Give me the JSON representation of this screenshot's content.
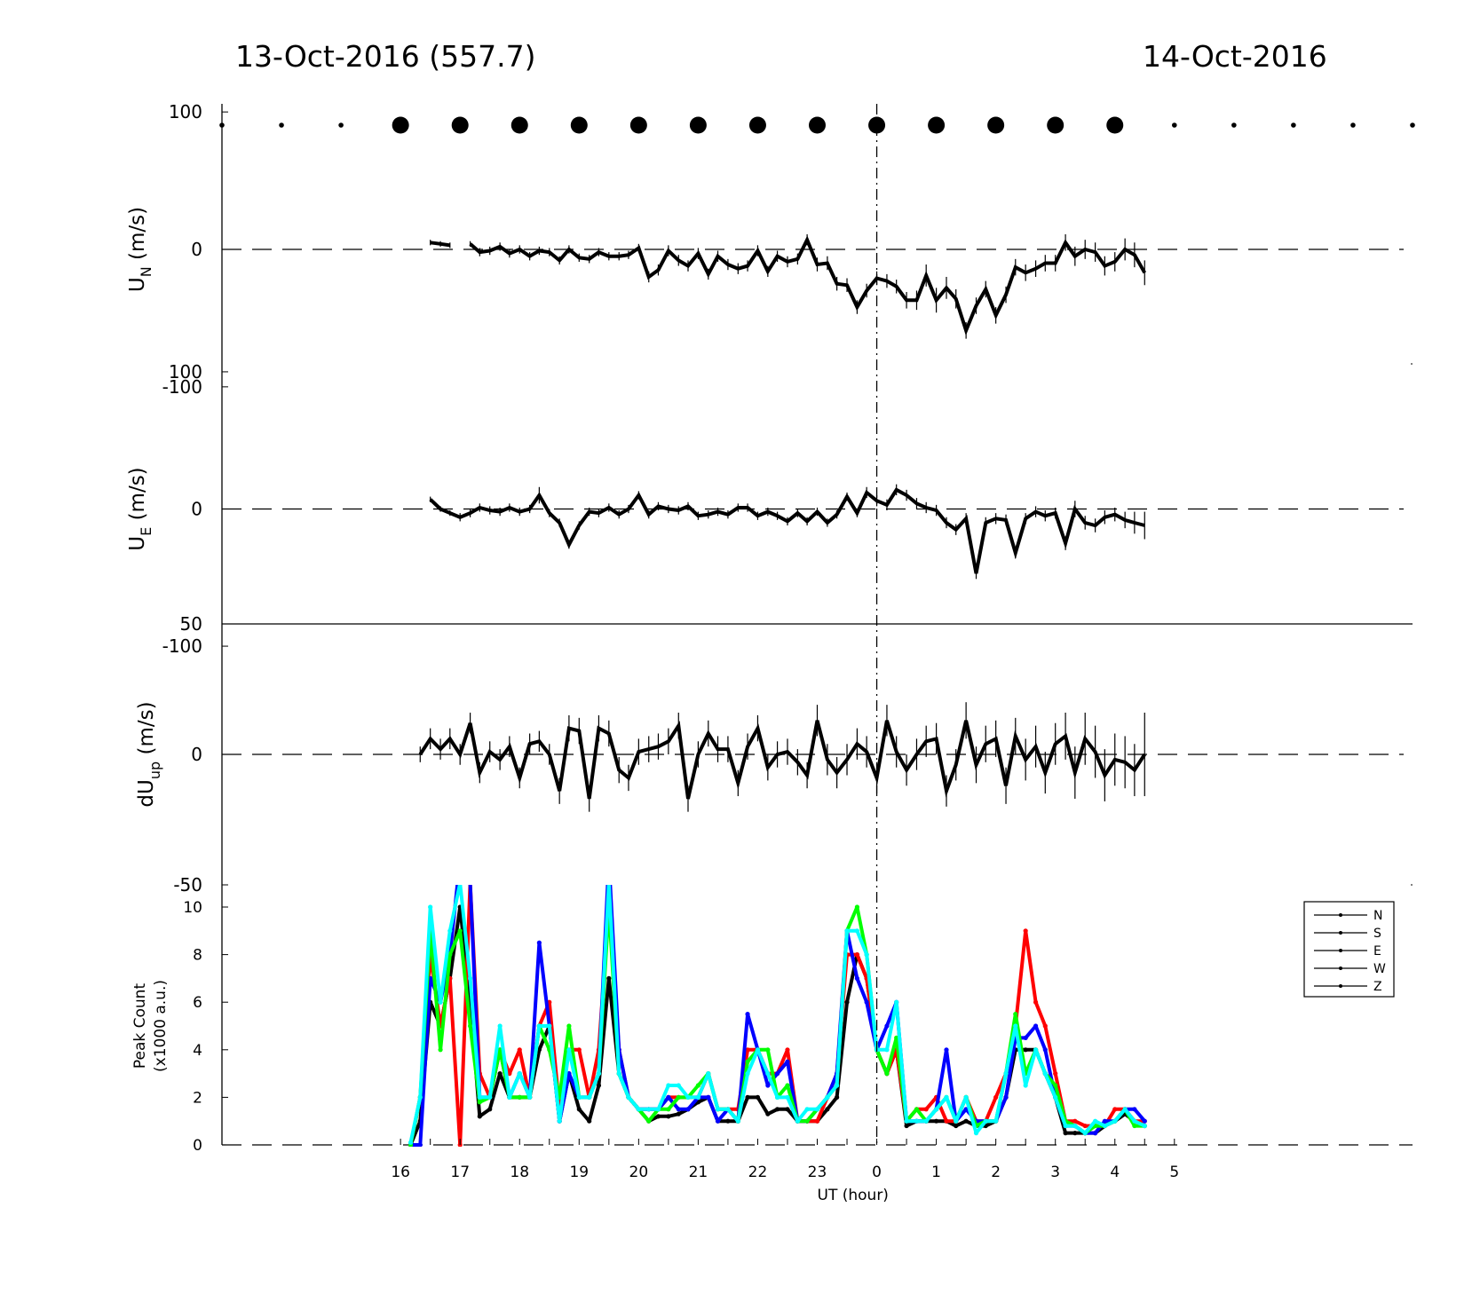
{
  "header": {
    "date_left": "13-Oct-2016 (557.7)",
    "date_right": "14-Oct-2016"
  },
  "x_axis": {
    "label": "UT (hour)",
    "tick_hours": [
      16,
      17,
      18,
      19,
      20,
      21,
      22,
      23,
      24,
      25,
      26,
      27,
      28,
      29
    ],
    "tick_labels": [
      "16",
      "17",
      "18",
      "19",
      "20",
      "21",
      "22",
      "23",
      "0",
      "1",
      "2",
      "3",
      "4",
      "5"
    ]
  },
  "legend": {
    "entries": [
      "N",
      "S",
      "E",
      "W",
      "Z"
    ]
  },
  "colors": {
    "N": "#ff0000",
    "S": "#0000ff",
    "E": "#00ff00",
    "W": "#00ffff",
    "Z": "#000000",
    "axis": "#000000"
  },
  "chart_data": [
    {
      "type": "scatter",
      "panel": "cloud-cover",
      "hours": [
        13.0,
        14.0,
        15.0,
        16.0,
        17.0,
        18.0,
        19.0,
        20.0,
        21.0,
        22.0,
        23.0,
        24.0,
        25.0,
        26.0,
        27.0,
        28.0,
        29.0,
        30.0,
        31.0,
        32.0,
        33.0
      ],
      "marker_size": [
        "small",
        "small",
        "small",
        "large",
        "large",
        "large",
        "large",
        "large",
        "large",
        "large",
        "large",
        "large",
        "large",
        "large",
        "large",
        "large",
        "small",
        "small",
        "small",
        "small",
        "small"
      ]
    },
    {
      "type": "line",
      "panel": "UN",
      "ylabel": "U",
      "ylabel_sub": "N",
      "ylabel_unit": "(m/s)",
      "ylim": [
        -175,
        175
      ],
      "yticks": [
        -100,
        0,
        100
      ],
      "ytick_labels": [
        "-100",
        "0",
        "100"
      ],
      "x": [
        16.5,
        16.67,
        16.83,
        17.17,
        17.33,
        17.5,
        17.67,
        17.83,
        18.0,
        18.17,
        18.33,
        18.5,
        18.67,
        18.83,
        19.0,
        19.17,
        19.33,
        19.5,
        19.67,
        19.83,
        20.0,
        20.17,
        20.33,
        20.5,
        20.67,
        20.83,
        21.0,
        21.17,
        21.33,
        21.5,
        21.67,
        21.83,
        22.0,
        22.17,
        22.33,
        22.5,
        22.67,
        22.83,
        23.0,
        23.17,
        23.33,
        23.5,
        23.67,
        23.83,
        24.0,
        24.17,
        24.33,
        24.5,
        24.67,
        24.83,
        25.0,
        25.17,
        25.33,
        25.5,
        25.67,
        25.83,
        26.0,
        26.17,
        26.33,
        26.5,
        26.67,
        26.83,
        27.0,
        27.17,
        27.33,
        27.5,
        27.67,
        27.83,
        28.0,
        28.17,
        28.33,
        28.5
      ],
      "y": [
        5,
        4,
        3,
        4,
        -2,
        -1,
        2,
        -3,
        0,
        -5,
        -1,
        -2,
        -8,
        0,
        -6,
        -7,
        -2,
        -5,
        -5,
        -4,
        1,
        -20,
        -15,
        -1,
        -8,
        -12,
        -3,
        -18,
        -5,
        -11,
        -14,
        -12,
        -1,
        -16,
        -5,
        -9,
        -7,
        7,
        -11,
        -10,
        -25,
        -26,
        -42,
        -30,
        -21,
        -23,
        -27,
        -37,
        -37,
        -19,
        -37,
        -28,
        -36,
        -59,
        -41,
        -29,
        -48,
        -33,
        -13,
        -17,
        -14,
        -10,
        -10,
        5,
        -5,
        0,
        -2,
        -12,
        -9,
        0,
        -4,
        -17
      ],
      "gaps_after_index": [
        2
      ],
      "err": [
        2,
        2,
        2,
        2,
        3,
        3,
        3,
        3,
        3,
        3,
        3,
        3,
        3,
        3,
        3,
        3,
        3,
        3,
        3,
        3,
        3,
        4,
        4,
        4,
        4,
        4,
        4,
        4,
        4,
        4,
        4,
        4,
        4,
        4,
        4,
        4,
        4,
        4,
        5,
        5,
        5,
        5,
        5,
        5,
        5,
        5,
        5,
        6,
        7,
        8,
        9,
        8,
        7,
        6,
        6,
        6,
        6,
        6,
        6,
        6,
        6,
        6,
        6,
        6,
        7,
        7,
        7,
        7,
        7,
        8,
        9,
        9
      ]
    },
    {
      "type": "line",
      "panel": "UE",
      "ylabel": "U",
      "ylabel_sub": "E",
      "ylabel_unit": "(m/s)",
      "ylim": [
        -175,
        175
      ],
      "yticks": [
        -100,
        0,
        100
      ],
      "ytick_labels": [
        "-100",
        "0",
        "100"
      ],
      "x": [
        16.5,
        16.67,
        16.83,
        17.0,
        17.17,
        17.33,
        17.5,
        17.67,
        17.83,
        18.0,
        18.17,
        18.33,
        18.5,
        18.67,
        18.83,
        19.0,
        19.17,
        19.33,
        19.5,
        19.67,
        19.83,
        20.0,
        20.17,
        20.33,
        20.5,
        20.67,
        20.83,
        21.0,
        21.17,
        21.33,
        21.5,
        21.67,
        21.83,
        22.0,
        22.17,
        22.33,
        22.5,
        22.67,
        22.83,
        23.0,
        23.17,
        23.33,
        23.5,
        23.67,
        23.83,
        24.0,
        24.17,
        24.33,
        24.5,
        24.67,
        24.83,
        25.0,
        25.17,
        25.33,
        25.5,
        25.67,
        25.83,
        26.0,
        26.17,
        26.33,
        26.5,
        26.67,
        26.83,
        27.0,
        27.17,
        27.33,
        27.5,
        27.67,
        27.83,
        28.0,
        28.17,
        28.33,
        28.5
      ],
      "y": [
        7,
        0,
        -3,
        -6,
        -3,
        1,
        -1,
        -2,
        1,
        -2,
        0,
        10,
        -3,
        -10,
        -26,
        -12,
        -2,
        -3,
        1,
        -4,
        0,
        10,
        -4,
        2,
        0,
        -1,
        2,
        -5,
        -4,
        -2,
        -4,
        1,
        1,
        -5,
        -2,
        -5,
        -9,
        -3,
        -9,
        -2,
        -10,
        -4,
        9,
        -3,
        12,
        6,
        3,
        14,
        10,
        4,
        1,
        -1,
        -10,
        -15,
        -7,
        -47,
        -10,
        -7,
        -8,
        -32,
        -7,
        -2,
        -5,
        -3,
        -25,
        0,
        -10,
        -12,
        -6,
        -4,
        -8,
        -10,
        -12
      ],
      "err": [
        2,
        2,
        2,
        3,
        3,
        3,
        3,
        3,
        3,
        3,
        3,
        6,
        3,
        3,
        3,
        3,
        3,
        3,
        3,
        3,
        3,
        3,
        3,
        3,
        3,
        3,
        3,
        3,
        3,
        3,
        3,
        3,
        3,
        3,
        3,
        3,
        3,
        3,
        3,
        3,
        3,
        3,
        3,
        3,
        4,
        4,
        4,
        4,
        4,
        4,
        4,
        4,
        4,
        4,
        4,
        4,
        4,
        4,
        4,
        4,
        4,
        4,
        4,
        4,
        5,
        6,
        5,
        5,
        5,
        5,
        6,
        8,
        10
      ]
    },
    {
      "type": "line",
      "panel": "dUup",
      "ylabel": "dU",
      "ylabel_sub": "up",
      "ylabel_unit": "(m/s)",
      "ylim": [
        -50,
        50
      ],
      "yticks": [
        -50,
        0,
        50
      ],
      "ytick_labels": [
        "-50",
        "0",
        "50"
      ],
      "x": [
        16.33,
        16.5,
        16.67,
        16.83,
        17.0,
        17.17,
        17.33,
        17.5,
        17.67,
        17.83,
        18.0,
        18.17,
        18.33,
        18.5,
        18.67,
        18.83,
        19.0,
        19.17,
        19.33,
        19.5,
        19.67,
        19.83,
        20.0,
        20.17,
        20.33,
        20.5,
        20.67,
        20.83,
        21.0,
        21.17,
        21.33,
        21.5,
        21.67,
        21.83,
        22.0,
        22.17,
        22.33,
        22.5,
        22.67,
        22.83,
        23.0,
        23.17,
        23.33,
        23.5,
        23.67,
        23.83,
        24.0,
        24.17,
        24.33,
        24.5,
        24.67,
        24.83,
        25.0,
        25.17,
        25.33,
        25.5,
        25.67,
        25.83,
        26.0,
        26.17,
        26.33,
        26.5,
        26.67,
        26.83,
        27.0,
        27.17,
        27.33,
        27.5,
        27.67,
        27.83,
        28.0,
        28.17,
        28.33,
        28.5
      ],
      "y": [
        0,
        6,
        2,
        6,
        0,
        12,
        -7,
        1,
        -2,
        3,
        -9,
        4,
        5,
        0,
        -14,
        10,
        9,
        -17,
        10,
        8,
        -6,
        -9,
        1,
        2,
        3,
        5,
        11,
        -17,
        0,
        8,
        2,
        2,
        -11,
        3,
        10,
        -5,
        0,
        1,
        -3,
        -8,
        13,
        -2,
        -7,
        -2,
        4,
        1,
        -9,
        13,
        1,
        -6,
        0,
        5,
        6,
        -14,
        -4,
        13,
        -4,
        4,
        6,
        -12,
        7,
        -2,
        3,
        -7,
        4,
        7,
        -7,
        6,
        1,
        -8,
        -2,
        -3,
        -6,
        0
      ],
      "err": [
        3,
        4,
        4,
        4,
        4,
        4,
        4,
        4,
        4,
        4,
        4,
        4,
        4,
        4,
        5,
        5,
        5,
        5,
        5,
        5,
        5,
        5,
        5,
        5,
        5,
        5,
        5,
        5,
        5,
        5,
        5,
        5,
        5,
        5,
        5,
        5,
        5,
        5,
        5,
        5,
        6,
        6,
        6,
        6,
        6,
        6,
        6,
        6,
        6,
        6,
        6,
        6,
        6,
        6,
        6,
        7,
        7,
        7,
        7,
        7,
        7,
        8,
        8,
        8,
        8,
        9,
        10,
        10,
        10,
        10,
        10,
        10,
        10,
        16
      ]
    },
    {
      "type": "line",
      "panel": "peak-count",
      "ylabel": "Peak Count",
      "ylabel2": "(x1000 a.u.)",
      "ylim": [
        0,
        10
      ],
      "yticks": [
        0,
        2,
        4,
        6,
        8,
        10
      ],
      "ytick_labels": [
        "0",
        "2",
        "4",
        "6",
        "8",
        "10"
      ],
      "x": [
        16.17,
        16.33,
        16.5,
        16.67,
        16.83,
        17.0,
        17.17,
        17.33,
        17.5,
        17.67,
        17.83,
        18.0,
        18.17,
        18.33,
        18.5,
        18.67,
        18.83,
        19.0,
        19.17,
        19.33,
        19.5,
        19.67,
        19.83,
        20.0,
        20.17,
        20.33,
        20.5,
        20.67,
        20.83,
        21.0,
        21.17,
        21.33,
        21.5,
        21.67,
        21.83,
        22.0,
        22.17,
        22.33,
        22.5,
        22.67,
        22.83,
        23.0,
        23.17,
        23.33,
        23.5,
        23.67,
        23.83,
        24.0,
        24.17,
        24.33,
        24.5,
        24.67,
        24.83,
        25.0,
        25.17,
        25.33,
        25.5,
        25.67,
        25.83,
        26.0,
        26.17,
        26.33,
        26.5,
        26.67,
        26.83,
        27.0,
        27.17,
        27.33,
        27.5,
        27.67,
        27.83,
        28.0,
        28.17,
        28.33,
        28.5
      ],
      "series": [
        {
          "name": "N",
          "values": [
            0,
            2,
            8,
            5,
            7,
            0,
            11,
            3,
            2,
            4,
            3,
            4,
            2,
            5,
            6,
            1.5,
            4,
            4,
            2,
            4,
            10,
            4,
            2,
            1.5,
            1.5,
            1.5,
            2,
            2,
            2,
            2,
            3,
            1.5,
            1.5,
            1.5,
            4,
            4,
            3,
            3,
            4,
            1,
            1,
            1,
            2,
            3,
            8,
            8,
            7,
            4,
            3,
            4,
            1,
            1.5,
            1.5,
            2,
            1,
            1,
            2,
            1,
            1,
            2,
            3,
            5,
            9,
            6,
            5,
            3,
            1,
            1,
            0.8,
            0.8,
            0.8,
            1.5,
            1.5,
            1,
            1
          ]
        },
        {
          "name": "S",
          "values": [
            0,
            0,
            7,
            6,
            8,
            12,
            11,
            2,
            2,
            4,
            2,
            3,
            2,
            8.5,
            5,
            1,
            3,
            2,
            2,
            3,
            12,
            4,
            2,
            1.5,
            1.5,
            1.5,
            2,
            1.5,
            1.5,
            2,
            2,
            1,
            1.5,
            1,
            5.5,
            4,
            2.5,
            3,
            3.5,
            1,
            1,
            1.5,
            2,
            3,
            9,
            7,
            6,
            4,
            5,
            6,
            1,
            1,
            1,
            1.5,
            4,
            1,
            1.5,
            1,
            1,
            1,
            2,
            4.5,
            4.5,
            5,
            4,
            2,
            0.8,
            0.8,
            0.5,
            0.5,
            1,
            1,
            1.5,
            1.5,
            1
          ]
        },
        {
          "name": "E",
          "values": [
            0,
            2,
            9,
            4,
            8,
            9,
            5,
            1.8,
            2,
            4,
            2,
            2,
            2,
            5,
            4,
            2,
            5,
            2,
            2,
            3,
            10,
            3,
            2,
            1.5,
            1,
            1.5,
            1.5,
            2,
            2,
            2.5,
            3,
            1.5,
            1.5,
            1,
            3.5,
            4,
            4,
            2,
            2.5,
            1,
            1,
            1.5,
            2,
            2.5,
            9,
            10,
            8,
            4,
            3,
            4.5,
            1,
            1.5,
            1,
            1.5,
            2,
            1,
            2,
            0.8,
            1,
            1,
            3,
            5.5,
            3,
            4,
            3,
            2.5,
            1,
            0.8,
            0.5,
            0.8,
            0.8,
            1,
            1.5,
            0.8,
            0.8
          ]
        },
        {
          "name": "W",
          "values": [
            0.1,
            2,
            10,
            6,
            9,
            11,
            7,
            2,
            2,
            5,
            2,
            3,
            2,
            5,
            5,
            1,
            4,
            2,
            2,
            3,
            11,
            3,
            2,
            1.5,
            1.5,
            1.5,
            2.5,
            2.5,
            2,
            2,
            3,
            1.5,
            1.5,
            1,
            3,
            4,
            3,
            2,
            2,
            1,
            1.5,
            1.5,
            2,
            2.5,
            9,
            9,
            8,
            4,
            4,
            6,
            1,
            1,
            1,
            1.5,
            2,
            1,
            2,
            0.5,
            1,
            1,
            3,
            5,
            2.5,
            4,
            3,
            2,
            0.8,
            0.8,
            0.5,
            1,
            0.8,
            1,
            1.5,
            1,
            0.8
          ]
        },
        {
          "name": "Z",
          "values": [
            0,
            1,
            6,
            5,
            7,
            10,
            6,
            1.2,
            1.5,
            3,
            2,
            2,
            2,
            4,
            5,
            1,
            3,
            1.5,
            1,
            2.5,
            7,
            3,
            2,
            1.5,
            1,
            1.2,
            1.2,
            1.3,
            1.5,
            1.8,
            2,
            1,
            1,
            1,
            2,
            2,
            1.3,
            1.5,
            1.5,
            1,
            1,
            1,
            1.5,
            2,
            6,
            8,
            7,
            4,
            3,
            4,
            0.8,
            1,
            1,
            1,
            1,
            0.8,
            1,
            0.8,
            0.8,
            1,
            2,
            4,
            4,
            4,
            3,
            2,
            0.5,
            0.5,
            0.5,
            0.5,
            0.8,
            1,
            1.3,
            1,
            0.8
          ]
        }
      ]
    }
  ]
}
